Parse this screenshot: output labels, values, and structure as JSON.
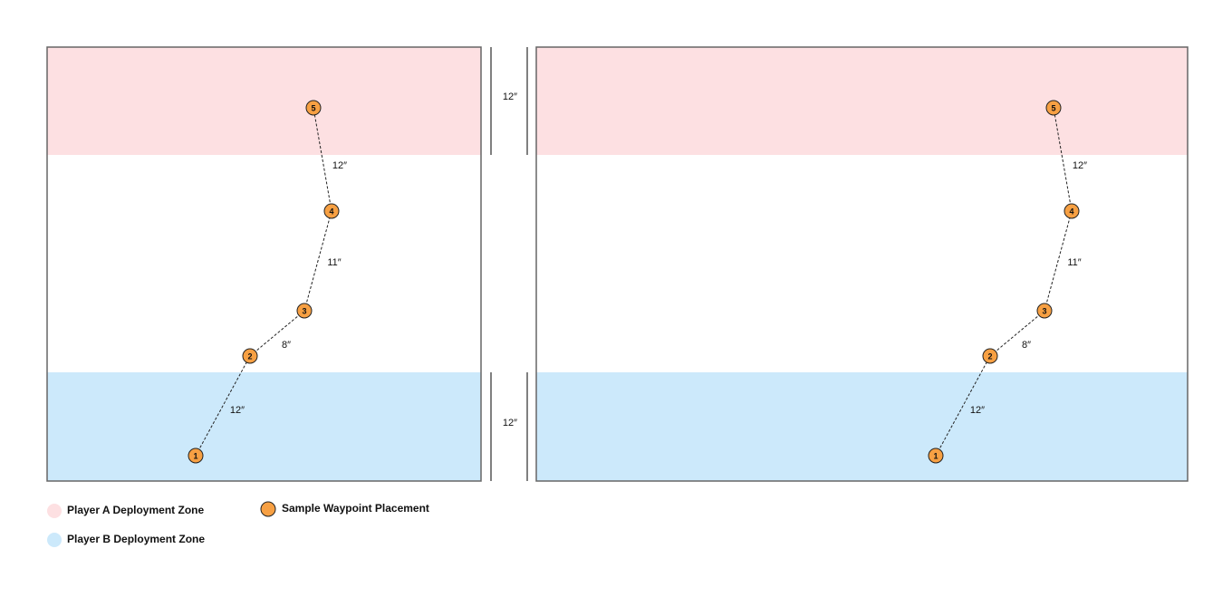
{
  "boards": [
    {
      "waypoints": [
        "1",
        "2",
        "3",
        "4",
        "5"
      ],
      "segments": [
        "12″",
        "8″",
        "11″",
        "12″"
      ]
    },
    {
      "waypoints": [
        "1",
        "2",
        "3",
        "4",
        "5"
      ],
      "segments": [
        "12″",
        "8″",
        "11″",
        "12″"
      ]
    }
  ],
  "dimensions": [
    "12″",
    "12″"
  ],
  "legend": [
    "Player A Deployment Zone",
    "Player B Deployment Zone",
    "Sample Waypoint Placement"
  ]
}
